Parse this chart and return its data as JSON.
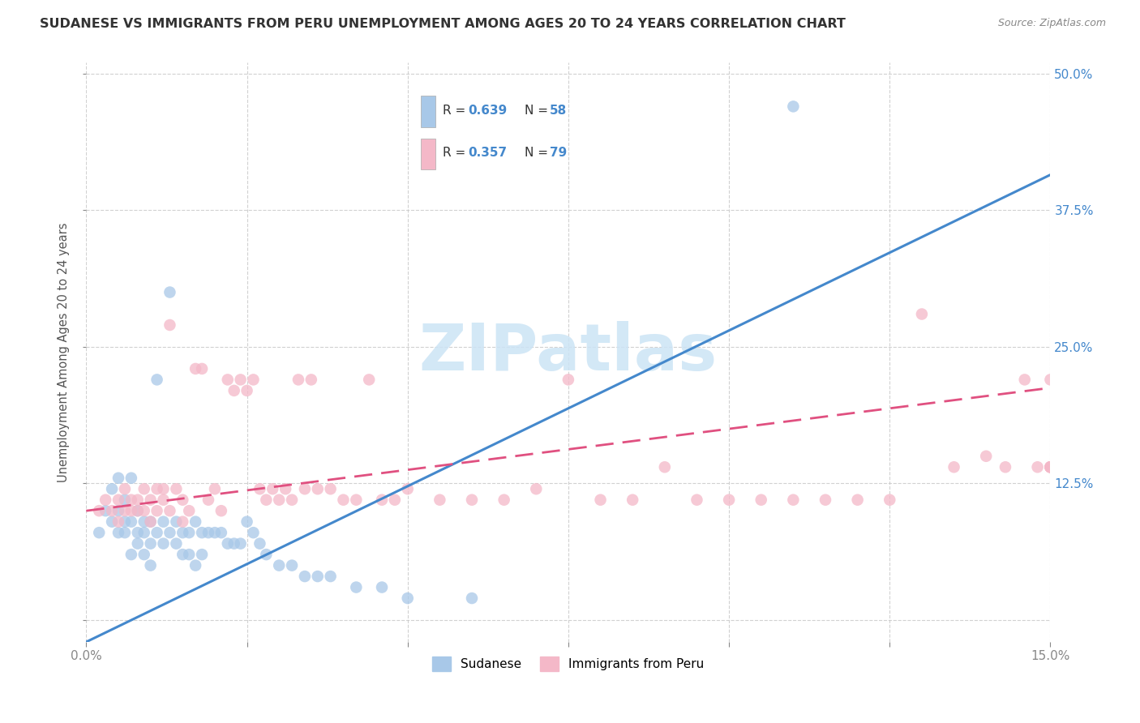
{
  "title": "SUDANESE VS IMMIGRANTS FROM PERU UNEMPLOYMENT AMONG AGES 20 TO 24 YEARS CORRELATION CHART",
  "source": "Source: ZipAtlas.com",
  "ylabel": "Unemployment Among Ages 20 to 24 years",
  "x_min": 0.0,
  "x_max": 0.15,
  "y_min": -0.02,
  "y_max": 0.51,
  "legend_label1": "Sudanese",
  "legend_label2": "Immigrants from Peru",
  "R1": "0.639",
  "N1": "58",
  "R2": "0.357",
  "N2": "79",
  "blue_scatter_color": "#a8c8e8",
  "pink_scatter_color": "#f4b8c8",
  "blue_line_color": "#4488cc",
  "pink_line_color": "#e05080",
  "title_color": "#333333",
  "axis_label_color": "#555555",
  "right_tick_color": "#4488cc",
  "watermark_color": "#cce4f5",
  "grid_color": "#cccccc",
  "blue_slope": 2.85,
  "blue_intercept": -0.02,
  "pink_slope": 0.75,
  "pink_intercept": 0.1,
  "sudanese_x": [
    0.002,
    0.003,
    0.004,
    0.004,
    0.005,
    0.005,
    0.005,
    0.006,
    0.006,
    0.006,
    0.007,
    0.007,
    0.007,
    0.008,
    0.008,
    0.008,
    0.009,
    0.009,
    0.009,
    0.01,
    0.01,
    0.01,
    0.011,
    0.011,
    0.012,
    0.012,
    0.013,
    0.013,
    0.014,
    0.014,
    0.015,
    0.015,
    0.016,
    0.016,
    0.017,
    0.017,
    0.018,
    0.018,
    0.019,
    0.02,
    0.021,
    0.022,
    0.023,
    0.024,
    0.025,
    0.026,
    0.027,
    0.028,
    0.03,
    0.032,
    0.034,
    0.036,
    0.038,
    0.042,
    0.046,
    0.05,
    0.06,
    0.11
  ],
  "sudanese_y": [
    0.08,
    0.1,
    0.12,
    0.09,
    0.1,
    0.13,
    0.08,
    0.09,
    0.11,
    0.08,
    0.09,
    0.06,
    0.13,
    0.08,
    0.1,
    0.07,
    0.09,
    0.06,
    0.08,
    0.09,
    0.07,
    0.05,
    0.22,
    0.08,
    0.09,
    0.07,
    0.08,
    0.3,
    0.09,
    0.07,
    0.08,
    0.06,
    0.08,
    0.06,
    0.09,
    0.05,
    0.08,
    0.06,
    0.08,
    0.08,
    0.08,
    0.07,
    0.07,
    0.07,
    0.09,
    0.08,
    0.07,
    0.06,
    0.05,
    0.05,
    0.04,
    0.04,
    0.04,
    0.03,
    0.03,
    0.02,
    0.02,
    0.47
  ],
  "peru_x": [
    0.002,
    0.003,
    0.004,
    0.005,
    0.005,
    0.006,
    0.006,
    0.007,
    0.007,
    0.008,
    0.008,
    0.009,
    0.009,
    0.01,
    0.01,
    0.011,
    0.011,
    0.012,
    0.012,
    0.013,
    0.013,
    0.014,
    0.015,
    0.015,
    0.016,
    0.017,
    0.018,
    0.019,
    0.02,
    0.021,
    0.022,
    0.023,
    0.024,
    0.025,
    0.026,
    0.027,
    0.028,
    0.029,
    0.03,
    0.031,
    0.032,
    0.033,
    0.034,
    0.035,
    0.036,
    0.038,
    0.04,
    0.042,
    0.044,
    0.046,
    0.048,
    0.05,
    0.055,
    0.06,
    0.065,
    0.07,
    0.075,
    0.08,
    0.085,
    0.09,
    0.095,
    0.1,
    0.105,
    0.11,
    0.115,
    0.12,
    0.125,
    0.13,
    0.135,
    0.14,
    0.143,
    0.146,
    0.148,
    0.15,
    0.15,
    0.15,
    0.15,
    0.15,
    0.15
  ],
  "peru_y": [
    0.1,
    0.11,
    0.1,
    0.11,
    0.09,
    0.1,
    0.12,
    0.1,
    0.11,
    0.1,
    0.11,
    0.12,
    0.1,
    0.11,
    0.09,
    0.12,
    0.1,
    0.12,
    0.11,
    0.27,
    0.1,
    0.12,
    0.11,
    0.09,
    0.1,
    0.23,
    0.23,
    0.11,
    0.12,
    0.1,
    0.22,
    0.21,
    0.22,
    0.21,
    0.22,
    0.12,
    0.11,
    0.12,
    0.11,
    0.12,
    0.11,
    0.22,
    0.12,
    0.22,
    0.12,
    0.12,
    0.11,
    0.11,
    0.22,
    0.11,
    0.11,
    0.12,
    0.11,
    0.11,
    0.11,
    0.12,
    0.22,
    0.11,
    0.11,
    0.14,
    0.11,
    0.11,
    0.11,
    0.11,
    0.11,
    0.11,
    0.11,
    0.28,
    0.14,
    0.15,
    0.14,
    0.22,
    0.14,
    0.14,
    0.14,
    0.14,
    0.14,
    0.14,
    0.22
  ]
}
